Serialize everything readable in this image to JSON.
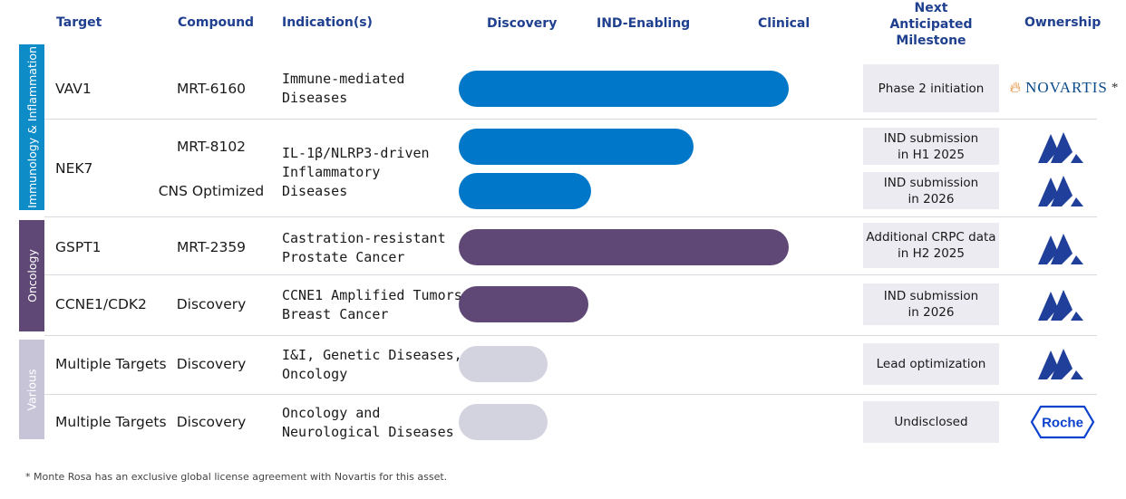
{
  "headers": {
    "target": "Target",
    "compound": "Compound",
    "indications": "Indication(s)",
    "discovery": "Discovery",
    "ind_enabling": "IND-Enabling",
    "clinical": "Clinical",
    "milestone_1": "Next",
    "milestone_2": "Anticipated",
    "milestone_3": "Milestone",
    "ownership": "Ownership"
  },
  "categories": {
    "immunology": "Immunology & Inflammation",
    "oncology": "Oncology",
    "various": "Various"
  },
  "rows": {
    "vav1": {
      "target": "VAV1",
      "compound": "MRT-6160",
      "ind_1": "Immune-mediated",
      "ind_2": "Diseases",
      "milestone": "Phase 2 initiation",
      "progress": 0.97,
      "owner": "NOVARTIS",
      "owner_note": "*"
    },
    "nek7": {
      "target": "NEK7",
      "compound_a": "MRT-8102",
      "compound_b": "CNS Optimized",
      "ind_1": "IL-1β/NLRP3-driven",
      "ind_2": "Inflammatory",
      "ind_3": "Diseases",
      "milestone_a_1": "IND submission",
      "milestone_a_2": "in H1 2025",
      "milestone_b_1": "IND submission",
      "milestone_b_2": "in 2026",
      "progress_a": 0.69,
      "progress_b": 0.39
    },
    "gspt1": {
      "target": "GSPT1",
      "compound": "MRT-2359",
      "ind_1": "Castration-resistant",
      "ind_2": "Prostate Cancer",
      "milestone_1": "Additional CRPC data",
      "milestone_2": "in H2 2025",
      "progress": 0.97
    },
    "ccne1": {
      "target": "CCNE1/CDK2",
      "compound": "Discovery",
      "ind_1": "CCNE1 Amplified Tumors,",
      "ind_2": "Breast Cancer",
      "milestone_1": "IND submission",
      "milestone_2": "in 2026",
      "progress": 0.38
    },
    "multi_1": {
      "target": "Multiple Targets",
      "compound": "Discovery",
      "ind_1": "I&I, Genetic Diseases,",
      "ind_2": "Oncology",
      "milestone": "Lead optimization",
      "progress": 0.26
    },
    "multi_2": {
      "target": "Multiple Targets",
      "compound": "Discovery",
      "ind_1": "Oncology and",
      "ind_2": "Neurological Diseases",
      "milestone": "Undisclosed",
      "progress": 0.26,
      "owner": "Roche"
    }
  },
  "colors": {
    "header": "#1f3f8f",
    "immunology": "#0e8cc8",
    "oncology": "#5f4876",
    "various": "#c8c4d8",
    "bar_blue": "#0077c8",
    "bar_purple": "#5f4876",
    "bar_grey": "#d3d2df",
    "monte_rosa_logo": "#1f3f9a"
  },
  "icons": {
    "monte_rosa": "monte-rosa-logo-icon",
    "novartis": "novartis-logo-icon",
    "roche": "roche-logo-icon"
  },
  "footnote": "* Monte Rosa has an exclusive global license agreement with Novartis for this asset."
}
